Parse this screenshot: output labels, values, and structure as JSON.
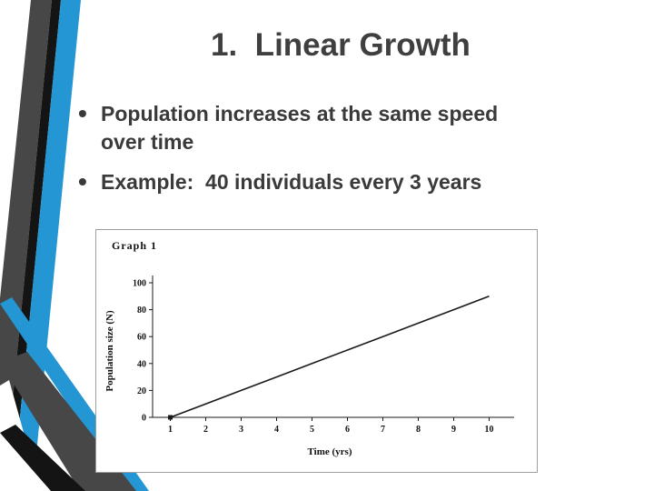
{
  "slide": {
    "title": "1.  Linear Growth",
    "bullets": [
      "Population increases at the same speed over time",
      "Example:  40 individuals every 3 years"
    ],
    "bullet_glyph": "•"
  },
  "theme": {
    "accent_blue": "#2496d3",
    "dark_gray": "#474747",
    "black": "#141414",
    "text_color": "#3a3a3a"
  },
  "chart_data": {
    "type": "line",
    "title": "Graph 1",
    "xlabel": "Time (yrs)",
    "ylabel": "Population size (N)",
    "x": [
      1,
      2,
      3,
      4,
      5,
      6,
      7,
      8,
      9,
      10
    ],
    "series": [
      {
        "name": "Population",
        "values": [
          0,
          10,
          20,
          30,
          40,
          50,
          60,
          70,
          80,
          90
        ]
      }
    ],
    "xticks": [
      1,
      2,
      3,
      4,
      5,
      6,
      7,
      8,
      9,
      10
    ],
    "yticks": [
      0,
      20,
      40,
      60,
      80,
      100
    ],
    "xlim": [
      0.5,
      10.5
    ],
    "ylim": [
      0,
      100
    ],
    "grid": false,
    "legend": false,
    "line_color": "#1a1a1a"
  }
}
